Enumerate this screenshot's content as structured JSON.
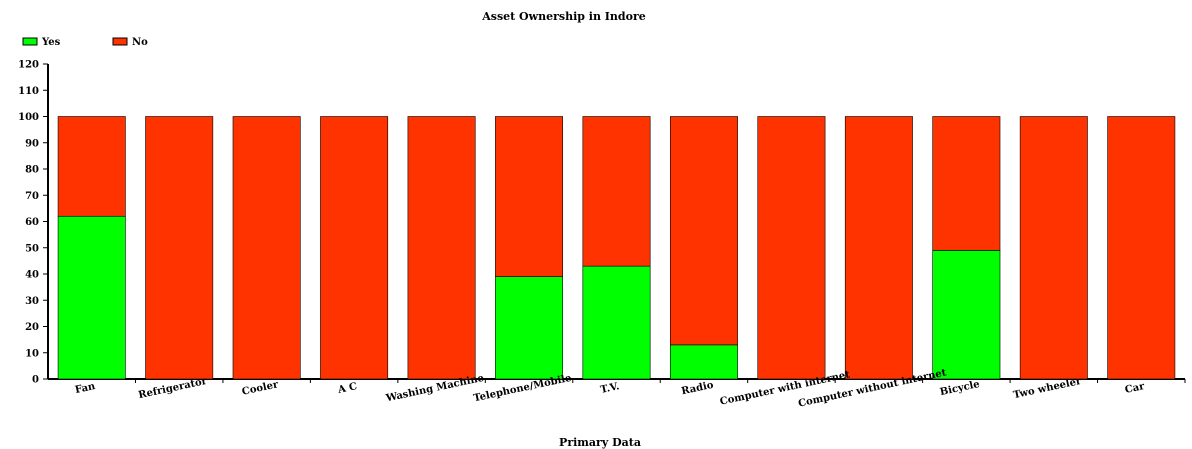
{
  "chart_data": {
    "type": "bar",
    "stacked": true,
    "title": "Asset Ownership in Indore",
    "xlabel": "Primary Data",
    "ylabel": "",
    "ylim": [
      0,
      120
    ],
    "yticks": [
      0,
      10,
      20,
      30,
      40,
      50,
      60,
      70,
      80,
      90,
      100,
      110,
      120
    ],
    "legend_position": "top-left",
    "grid": false,
    "categories": [
      "Fan",
      "Refrigerator",
      "Cooler",
      "A C",
      "Washing Machine",
      "Telephone/Mobile",
      "T.V.",
      "Radio",
      "Computer with internet",
      "Computer without internet",
      "Bicycle",
      "Two wheeler",
      "Car"
    ],
    "series": [
      {
        "name": "Yes",
        "color": "#00ff00",
        "values": [
          62,
          0,
          0,
          0,
          0,
          39,
          43,
          13,
          0,
          0,
          49,
          0,
          0
        ]
      },
      {
        "name": "No",
        "color": "#ff3300",
        "values": [
          38,
          100,
          100,
          100,
          100,
          61,
          57,
          87,
          100,
          100,
          51,
          100,
          100
        ]
      }
    ]
  }
}
